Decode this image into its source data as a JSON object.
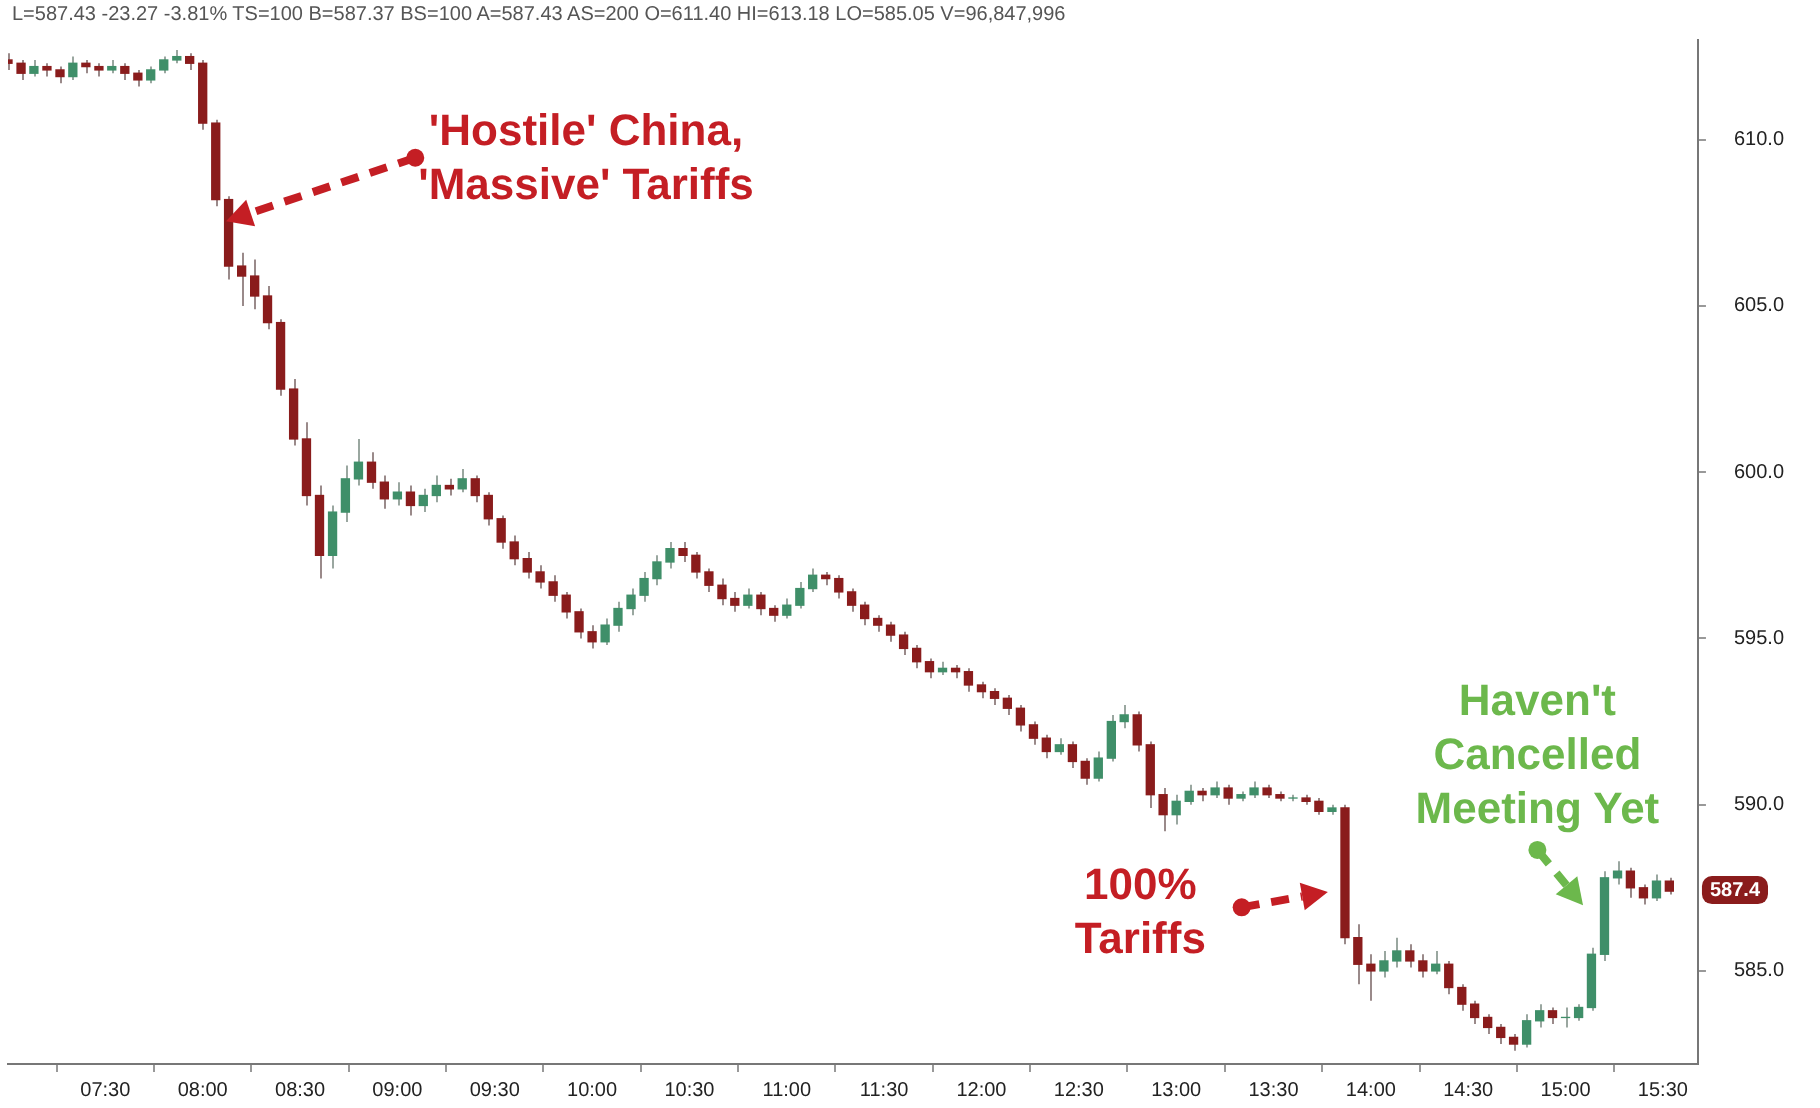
{
  "chart_data": {
    "type": "candlestick",
    "x": [
      7,
      7.067,
      7.133,
      7.2,
      7.267,
      7.333,
      7.4,
      7.467,
      7.533,
      7.6,
      7.667,
      7.733,
      7.8,
      7.867,
      7.933,
      8,
      8.067,
      8.133,
      8.2,
      8.267,
      8.333,
      8.4,
      8.467,
      8.533,
      8.6,
      8.667,
      8.733,
      8.8,
      8.867,
      8.933,
      9,
      9.067,
      9.133,
      9.2,
      9.267,
      9.333,
      9.4,
      9.467,
      9.533,
      9.6,
      9.667,
      9.733,
      9.8,
      9.867,
      9.933,
      10,
      10.067,
      10.133,
      10.2,
      10.267,
      10.333,
      10.4,
      10.467,
      10.533,
      10.6,
      10.667,
      10.733,
      10.8,
      10.867,
      10.933,
      11,
      11.067,
      11.133,
      11.2,
      11.267,
      11.333,
      11.4,
      11.467,
      11.533,
      11.6,
      11.667,
      11.733,
      11.8,
      11.867,
      11.933,
      12,
      12.067,
      12.133,
      12.2,
      12.267,
      12.333,
      12.4,
      12.467,
      12.533,
      12.6,
      12.667,
      12.733,
      12.8,
      12.867,
      12.933,
      13,
      13.067,
      13.133,
      13.2,
      13.267,
      13.333,
      13.4,
      13.467,
      13.533,
      13.6,
      13.667,
      13.733,
      13.8,
      13.867,
      13.933,
      14,
      14.067,
      14.133,
      14.2,
      14.267,
      14.333,
      14.4,
      14.467,
      14.533,
      14.6,
      14.667,
      14.733,
      14.8,
      14.867,
      14.933,
      15,
      15.067,
      15.133,
      15.2,
      15.267,
      15.333,
      15.4,
      15.467,
      15.533
    ],
    "ohlc": [
      [
        612.4,
        612.6,
        612.1,
        612.3
      ],
      [
        612.3,
        612.4,
        611.8,
        612.0
      ],
      [
        612.0,
        612.4,
        611.9,
        612.2
      ],
      [
        612.2,
        612.3,
        611.9,
        612.1
      ],
      [
        612.1,
        612.2,
        611.7,
        611.9
      ],
      [
        611.9,
        612.5,
        611.8,
        612.3
      ],
      [
        612.3,
        612.4,
        612.0,
        612.2
      ],
      [
        612.2,
        612.3,
        611.9,
        612.1
      ],
      [
        612.1,
        612.4,
        612.0,
        612.2
      ],
      [
        612.2,
        612.3,
        611.8,
        612.0
      ],
      [
        612.0,
        612.1,
        611.6,
        611.8
      ],
      [
        611.8,
        612.2,
        611.7,
        612.1
      ],
      [
        612.1,
        612.5,
        612.0,
        612.4
      ],
      [
        612.4,
        612.7,
        612.3,
        612.5
      ],
      [
        612.5,
        612.6,
        612.1,
        612.3
      ],
      [
        612.3,
        612.4,
        610.3,
        610.5
      ],
      [
        610.5,
        610.6,
        608.0,
        608.2
      ],
      [
        608.2,
        608.3,
        605.8,
        606.2
      ],
      [
        606.2,
        606.6,
        605.0,
        605.9
      ],
      [
        605.9,
        606.4,
        604.9,
        605.3
      ],
      [
        605.3,
        605.6,
        604.3,
        604.5
      ],
      [
        604.5,
        604.6,
        602.3,
        602.5
      ],
      [
        602.5,
        602.8,
        600.8,
        601.0
      ],
      [
        601.0,
        601.5,
        599.0,
        599.3
      ],
      [
        599.3,
        599.6,
        596.8,
        597.5
      ],
      [
        597.5,
        599.0,
        597.1,
        598.8
      ],
      [
        598.8,
        600.2,
        598.5,
        599.8
      ],
      [
        599.8,
        601.0,
        599.6,
        600.3
      ],
      [
        600.3,
        600.6,
        599.5,
        599.7
      ],
      [
        599.7,
        599.9,
        598.9,
        599.2
      ],
      [
        599.2,
        599.7,
        599.0,
        599.4
      ],
      [
        599.4,
        599.6,
        598.7,
        599.0
      ],
      [
        599.0,
        599.5,
        598.8,
        599.3
      ],
      [
        599.3,
        599.9,
        599.1,
        599.6
      ],
      [
        599.6,
        599.8,
        599.3,
        599.5
      ],
      [
        599.5,
        600.1,
        599.4,
        599.8
      ],
      [
        599.8,
        599.9,
        599.1,
        599.3
      ],
      [
        599.3,
        599.4,
        598.4,
        598.6
      ],
      [
        598.6,
        598.7,
        597.7,
        597.9
      ],
      [
        597.9,
        598.1,
        597.2,
        597.4
      ],
      [
        597.4,
        597.6,
        596.8,
        597.0
      ],
      [
        597.0,
        597.2,
        596.5,
        596.7
      ],
      [
        596.7,
        596.9,
        596.1,
        596.3
      ],
      [
        596.3,
        596.4,
        595.6,
        595.8
      ],
      [
        595.8,
        595.9,
        595.0,
        595.2
      ],
      [
        595.2,
        595.4,
        594.7,
        594.9
      ],
      [
        594.9,
        595.6,
        594.8,
        595.4
      ],
      [
        595.4,
        596.1,
        595.2,
        595.9
      ],
      [
        595.9,
        596.5,
        595.7,
        596.3
      ],
      [
        596.3,
        597.0,
        596.1,
        596.8
      ],
      [
        596.8,
        597.5,
        596.6,
        597.3
      ],
      [
        597.3,
        597.9,
        597.1,
        597.7
      ],
      [
        597.7,
        597.9,
        597.3,
        597.5
      ],
      [
        597.5,
        597.6,
        596.8,
        597.0
      ],
      [
        597.0,
        597.1,
        596.4,
        596.6
      ],
      [
        596.6,
        596.8,
        596.0,
        596.2
      ],
      [
        596.2,
        596.4,
        595.8,
        596.0
      ],
      [
        596.0,
        596.5,
        595.9,
        596.3
      ],
      [
        596.3,
        596.4,
        595.7,
        595.9
      ],
      [
        595.9,
        596.0,
        595.5,
        595.7
      ],
      [
        595.7,
        596.2,
        595.6,
        596.0
      ],
      [
        596.0,
        596.7,
        595.9,
        596.5
      ],
      [
        596.5,
        597.1,
        596.4,
        596.9
      ],
      [
        596.9,
        597.0,
        596.6,
        596.8
      ],
      [
        596.8,
        596.9,
        596.2,
        596.4
      ],
      [
        596.4,
        596.5,
        595.8,
        596.0
      ],
      [
        596.0,
        596.1,
        595.4,
        595.6
      ],
      [
        595.6,
        595.7,
        595.2,
        595.4
      ],
      [
        595.4,
        595.5,
        594.9,
        595.1
      ],
      [
        595.1,
        595.2,
        594.5,
        594.7
      ],
      [
        594.7,
        594.8,
        594.1,
        594.3
      ],
      [
        594.3,
        594.4,
        593.8,
        594.0
      ],
      [
        594.0,
        594.3,
        593.9,
        594.1
      ],
      [
        594.1,
        594.2,
        593.8,
        594.0
      ],
      [
        594.0,
        594.1,
        593.4,
        593.6
      ],
      [
        593.6,
        593.7,
        593.2,
        593.4
      ],
      [
        593.4,
        593.5,
        593.0,
        593.2
      ],
      [
        593.2,
        593.3,
        592.7,
        592.9
      ],
      [
        592.9,
        593.0,
        592.2,
        592.4
      ],
      [
        592.4,
        592.5,
        591.8,
        592.0
      ],
      [
        592.0,
        592.1,
        591.4,
        591.6
      ],
      [
        591.6,
        592.0,
        591.5,
        591.8
      ],
      [
        591.8,
        591.9,
        591.1,
        591.3
      ],
      [
        591.3,
        591.4,
        590.6,
        590.8
      ],
      [
        590.8,
        591.6,
        590.7,
        591.4
      ],
      [
        591.4,
        592.7,
        591.3,
        592.5
      ],
      [
        592.5,
        593.0,
        592.3,
        592.7
      ],
      [
        592.7,
        592.8,
        591.6,
        591.8
      ],
      [
        591.8,
        591.9,
        589.9,
        590.3
      ],
      [
        590.3,
        590.5,
        589.2,
        589.7
      ],
      [
        589.7,
        590.3,
        589.4,
        590.1
      ],
      [
        590.1,
        590.6,
        590.0,
        590.4
      ],
      [
        590.4,
        590.5,
        590.1,
        590.3
      ],
      [
        590.3,
        590.7,
        590.2,
        590.5
      ],
      [
        590.5,
        590.6,
        590.0,
        590.2
      ],
      [
        590.2,
        590.4,
        590.1,
        590.3
      ],
      [
        590.3,
        590.7,
        590.2,
        590.5
      ],
      [
        590.5,
        590.6,
        590.2,
        590.3
      ],
      [
        590.3,
        590.4,
        590.1,
        590.2
      ],
      [
        590.2,
        590.3,
        590.1,
        590.2
      ],
      [
        590.2,
        590.3,
        590.0,
        590.1
      ],
      [
        590.1,
        590.2,
        589.7,
        589.8
      ],
      [
        589.8,
        590.0,
        589.7,
        589.9
      ],
      [
        589.9,
        590.0,
        585.8,
        586.0
      ],
      [
        586.0,
        586.4,
        584.6,
        585.2
      ],
      [
        585.2,
        585.5,
        584.1,
        585.0
      ],
      [
        585.0,
        585.6,
        584.8,
        585.3
      ],
      [
        585.3,
        586.0,
        585.1,
        585.6
      ],
      [
        585.6,
        585.8,
        585.1,
        585.3
      ],
      [
        585.3,
        585.5,
        584.8,
        585.0
      ],
      [
        585.0,
        585.6,
        584.9,
        585.2
      ],
      [
        585.2,
        585.3,
        584.3,
        584.5
      ],
      [
        584.5,
        584.6,
        583.8,
        584.0
      ],
      [
        584.0,
        584.1,
        583.4,
        583.6
      ],
      [
        583.6,
        583.7,
        583.1,
        583.3
      ],
      [
        583.3,
        583.4,
        582.8,
        583.0
      ],
      [
        583.0,
        583.1,
        582.6,
        582.8
      ],
      [
        582.8,
        583.7,
        582.7,
        583.5
      ],
      [
        583.5,
        584.0,
        583.3,
        583.8
      ],
      [
        583.8,
        583.9,
        583.4,
        583.6
      ],
      [
        583.6,
        583.9,
        583.3,
        583.6
      ],
      [
        583.6,
        584.0,
        583.5,
        583.9
      ],
      [
        583.9,
        585.7,
        583.8,
        585.5
      ],
      [
        585.5,
        588.0,
        585.3,
        587.8
      ],
      [
        587.8,
        588.3,
        587.6,
        588.0
      ],
      [
        588.0,
        588.1,
        587.2,
        587.5
      ],
      [
        587.5,
        587.6,
        587.0,
        587.2
      ],
      [
        587.2,
        587.9,
        587.1,
        587.7
      ],
      [
        587.7,
        587.8,
        587.3,
        587.4
      ]
    ],
    "xlim": [
      7,
      15.68
    ],
    "xticks": [
      {
        "value": 7.5,
        "label": "07:30"
      },
      {
        "value": 8,
        "label": "08:00"
      },
      {
        "value": 8.5,
        "label": "08:30"
      },
      {
        "value": 9,
        "label": "09:00"
      },
      {
        "value": 9.5,
        "label": "09:30"
      },
      {
        "value": 10,
        "label": "10:00"
      },
      {
        "value": 10.5,
        "label": "10:30"
      },
      {
        "value": 11,
        "label": "11:00"
      },
      {
        "value": 11.5,
        "label": "11:30"
      },
      {
        "value": 12,
        "label": "12:00"
      },
      {
        "value": 12.5,
        "label": "12:30"
      },
      {
        "value": 13,
        "label": "13:00"
      },
      {
        "value": 13.5,
        "label": "13:30"
      },
      {
        "value": 14,
        "label": "14:00"
      },
      {
        "value": 14.5,
        "label": "14:30"
      },
      {
        "value": 15,
        "label": "15:00"
      },
      {
        "value": 15.5,
        "label": "15:30"
      }
    ],
    "ylim": [
      582.2,
      613
    ],
    "yticks": [
      {
        "value": 585,
        "label": "585.0"
      },
      {
        "value": 590,
        "label": "590.0"
      },
      {
        "value": 595,
        "label": "595.0"
      },
      {
        "value": 600,
        "label": "600.0"
      },
      {
        "value": 605,
        "label": "605.0"
      },
      {
        "value": 610,
        "label": "610.0"
      }
    ],
    "annotations": [
      "L=587.43 -23.27 -3.81% TS=100 B=587.37 BS=100 A=587.43 AS=200 O=611.40 HI=613.18 LO=585.05 V=96,847,996",
      "'Hostile' China, 'Massive' Tariffs",
      "100% Tariffs",
      "Haven't Cancelled Meeting Yet",
      {
        "text": "587.4",
        "y": 587.43
      }
    ],
    "grid": false,
    "legend": false
  }
}
